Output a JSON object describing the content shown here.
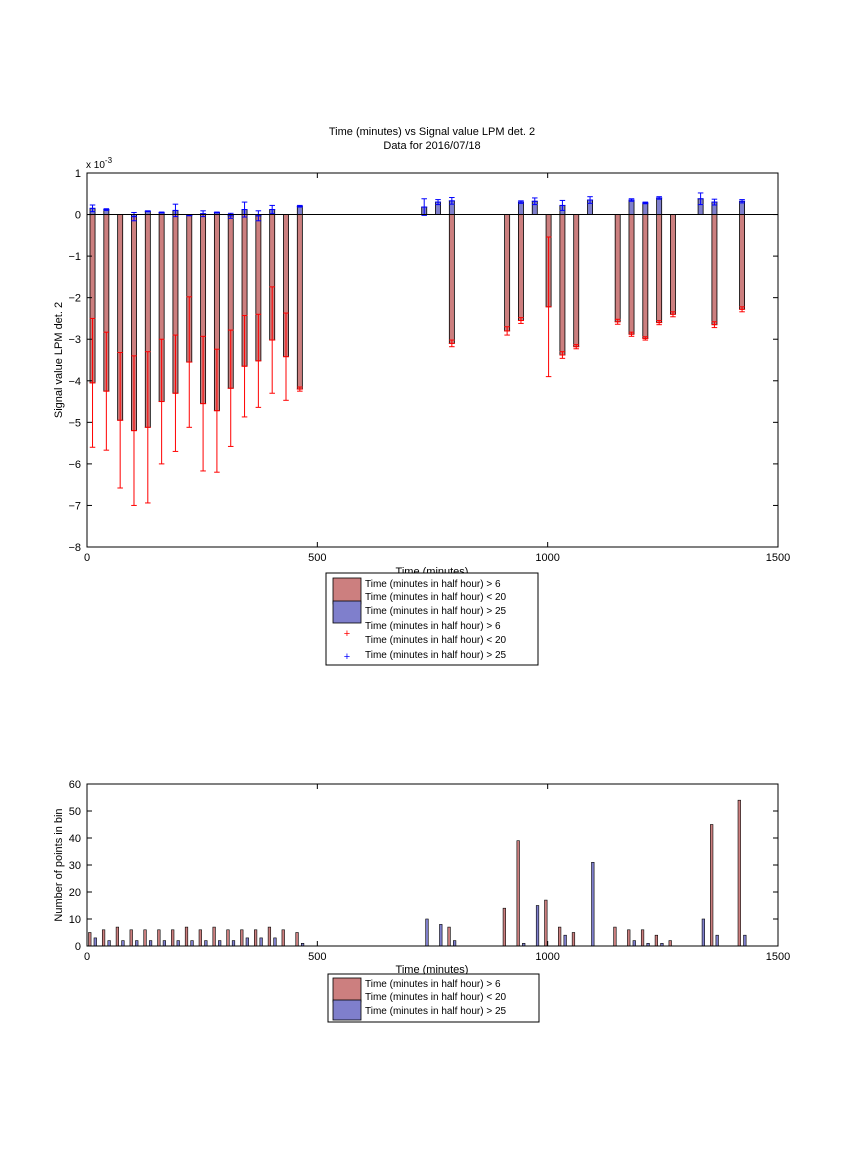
{
  "chart_data": [
    {
      "type": "bar",
      "title": "Time (minutes) vs Signal value LPM det. 2",
      "subtitle": "Data for 2016/07/18",
      "xlabel": "Time (minutes)",
      "ylabel": "Signal value LPM det. 2",
      "y_exponent_label": "x 10",
      "y_exponent_power": "-3",
      "xlim": [
        0,
        1500
      ],
      "ylim": [
        -8,
        1
      ],
      "xticks": [
        0,
        500,
        1000,
        1500
      ],
      "yticks": [
        -8,
        -7,
        -6,
        -5,
        -4,
        -3,
        -2,
        -1,
        0,
        1
      ],
      "grid": false,
      "legend_position": "below",
      "legend": [
        "Time (minutes in half hour) > 6",
        "Time (minutes in half hour) < 20",
        "Time (minutes in half hour) > 25",
        "Time (minutes in half hour) > 6",
        "Time (minutes in half hour) < 20",
        "Time (minutes in half hour) > 25"
      ],
      "series": [
        {
          "name": "Time (minutes in half hour) > 6 / < 20",
          "color": "#cc7f7f",
          "error_color": "#ff0000",
          "points": [
            {
              "x": 12,
              "y": -4.05,
              "err": 1.55
            },
            {
              "x": 42,
              "y": -4.25,
              "err": 1.42
            },
            {
              "x": 72,
              "y": -4.95,
              "err": 1.63
            },
            {
              "x": 102,
              "y": -5.2,
              "err": 1.8
            },
            {
              "x": 132,
              "y": -5.12,
              "err": 1.82
            },
            {
              "x": 162,
              "y": -4.5,
              "err": 1.5
            },
            {
              "x": 192,
              "y": -4.3,
              "err": 1.4
            },
            {
              "x": 222,
              "y": -3.55,
              "err": 1.57
            },
            {
              "x": 252,
              "y": -4.55,
              "err": 1.62
            },
            {
              "x": 282,
              "y": -4.72,
              "err": 1.48
            },
            {
              "x": 312,
              "y": -4.18,
              "err": 1.4
            },
            {
              "x": 342,
              "y": -3.65,
              "err": 1.22
            },
            {
              "x": 372,
              "y": -3.52,
              "err": 1.12
            },
            {
              "x": 402,
              "y": -3.02,
              "err": 1.28
            },
            {
              "x": 432,
              "y": -3.42,
              "err": 1.05
            },
            {
              "x": 462,
              "y": -4.2,
              "err": 0.05
            },
            {
              "x": 792,
              "y": -3.1,
              "err": 0.08
            },
            {
              "x": 912,
              "y": -2.8,
              "err": 0.1
            },
            {
              "x": 942,
              "y": -2.55,
              "err": 0.07
            },
            {
              "x": 1002,
              "y": -2.22,
              "err": 1.68
            },
            {
              "x": 1032,
              "y": -3.38,
              "err": 0.08
            },
            {
              "x": 1062,
              "y": -3.18,
              "err": 0.05
            },
            {
              "x": 1152,
              "y": -2.58,
              "err": 0.06
            },
            {
              "x": 1182,
              "y": -2.88,
              "err": 0.05
            },
            {
              "x": 1212,
              "y": -2.98,
              "err": 0.04
            },
            {
              "x": 1242,
              "y": -2.6,
              "err": 0.05
            },
            {
              "x": 1272,
              "y": -2.4,
              "err": 0.06
            },
            {
              "x": 1362,
              "y": -2.65,
              "err": 0.07
            },
            {
              "x": 1422,
              "y": -2.28,
              "err": 0.06
            }
          ]
        },
        {
          "name": "Time (minutes in half hour) > 25",
          "color": "#7f7fcc",
          "error_color": "#0000ff",
          "points": [
            {
              "x": 12,
              "y": 0.15,
              "err": 0.08
            },
            {
              "x": 42,
              "y": 0.12,
              "err": 0.02
            },
            {
              "x": 102,
              "y": -0.05,
              "err": 0.1
            },
            {
              "x": 132,
              "y": 0.08,
              "err": 0.01
            },
            {
              "x": 162,
              "y": 0.05,
              "err": 0.01
            },
            {
              "x": 192,
              "y": 0.1,
              "err": 0.15
            },
            {
              "x": 222,
              "y": -0.02,
              "err": 0.01
            },
            {
              "x": 252,
              "y": 0.02,
              "err": 0.07
            },
            {
              "x": 282,
              "y": 0.05,
              "err": 0.01
            },
            {
              "x": 312,
              "y": -0.03,
              "err": 0.06
            },
            {
              "x": 342,
              "y": 0.12,
              "err": 0.18
            },
            {
              "x": 372,
              "y": -0.03,
              "err": 0.12
            },
            {
              "x": 402,
              "y": 0.12,
              "err": 0.1
            },
            {
              "x": 462,
              "y": 0.2,
              "err": 0.02
            },
            {
              "x": 732,
              "y": 0.18,
              "err": 0.2
            },
            {
              "x": 762,
              "y": 0.3,
              "err": 0.06
            },
            {
              "x": 792,
              "y": 0.33,
              "err": 0.08
            },
            {
              "x": 942,
              "y": 0.3,
              "err": 0.03
            },
            {
              "x": 972,
              "y": 0.32,
              "err": 0.08
            },
            {
              "x": 1032,
              "y": 0.22,
              "err": 0.12
            },
            {
              "x": 1092,
              "y": 0.35,
              "err": 0.08
            },
            {
              "x": 1182,
              "y": 0.35,
              "err": 0.03
            },
            {
              "x": 1212,
              "y": 0.28,
              "err": 0.02
            },
            {
              "x": 1242,
              "y": 0.4,
              "err": 0.03
            },
            {
              "x": 1332,
              "y": 0.38,
              "err": 0.14
            },
            {
              "x": 1362,
              "y": 0.3,
              "err": 0.07
            },
            {
              "x": 1422,
              "y": 0.32,
              "err": 0.04
            }
          ]
        }
      ]
    },
    {
      "type": "bar",
      "xlabel": "Time (minutes)",
      "ylabel": "Number of points in bin",
      "xlim": [
        0,
        1500
      ],
      "ylim": [
        0,
        60
      ],
      "xticks": [
        0,
        500,
        1000,
        1500
      ],
      "yticks": [
        0,
        10,
        20,
        30,
        40,
        50,
        60
      ],
      "grid": false,
      "legend_position": "below",
      "legend": [
        "Time (minutes in half hour) > 6",
        "Time (minutes in half hour) < 20",
        "Time (minutes in half hour) > 25"
      ],
      "series": [
        {
          "name": "Time (minutes in half hour) > 6 / < 20",
          "color": "#cc7f7f",
          "points": [
            {
              "x": 6,
              "y": 5
            },
            {
              "x": 36,
              "y": 6
            },
            {
              "x": 66,
              "y": 7
            },
            {
              "x": 96,
              "y": 6
            },
            {
              "x": 126,
              "y": 6
            },
            {
              "x": 156,
              "y": 6
            },
            {
              "x": 186,
              "y": 6
            },
            {
              "x": 216,
              "y": 7
            },
            {
              "x": 246,
              "y": 6
            },
            {
              "x": 276,
              "y": 7
            },
            {
              "x": 306,
              "y": 6
            },
            {
              "x": 336,
              "y": 6
            },
            {
              "x": 366,
              "y": 6
            },
            {
              "x": 396,
              "y": 7
            },
            {
              "x": 426,
              "y": 6
            },
            {
              "x": 456,
              "y": 5
            },
            {
              "x": 786,
              "y": 7
            },
            {
              "x": 906,
              "y": 14
            },
            {
              "x": 936,
              "y": 39
            },
            {
              "x": 996,
              "y": 17
            },
            {
              "x": 1026,
              "y": 7
            },
            {
              "x": 1056,
              "y": 5
            },
            {
              "x": 1146,
              "y": 7
            },
            {
              "x": 1176,
              "y": 6
            },
            {
              "x": 1206,
              "y": 6
            },
            {
              "x": 1236,
              "y": 4
            },
            {
              "x": 1266,
              "y": 2
            },
            {
              "x": 1356,
              "y": 45
            },
            {
              "x": 1416,
              "y": 54
            }
          ]
        },
        {
          "name": "Time (minutes in half hour) > 25",
          "color": "#7f7fcc",
          "points": [
            {
              "x": 18,
              "y": 3
            },
            {
              "x": 48,
              "y": 2
            },
            {
              "x": 78,
              "y": 2
            },
            {
              "x": 108,
              "y": 2
            },
            {
              "x": 138,
              "y": 2
            },
            {
              "x": 168,
              "y": 2
            },
            {
              "x": 198,
              "y": 2
            },
            {
              "x": 228,
              "y": 2
            },
            {
              "x": 258,
              "y": 2
            },
            {
              "x": 288,
              "y": 2
            },
            {
              "x": 318,
              "y": 2
            },
            {
              "x": 348,
              "y": 3
            },
            {
              "x": 378,
              "y": 3
            },
            {
              "x": 408,
              "y": 3
            },
            {
              "x": 468,
              "y": 1
            },
            {
              "x": 738,
              "y": 10
            },
            {
              "x": 768,
              "y": 8
            },
            {
              "x": 798,
              "y": 2
            },
            {
              "x": 948,
              "y": 1
            },
            {
              "x": 978,
              "y": 15
            },
            {
              "x": 1038,
              "y": 4
            },
            {
              "x": 1098,
              "y": 31
            },
            {
              "x": 1188,
              "y": 2
            },
            {
              "x": 1218,
              "y": 1
            },
            {
              "x": 1248,
              "y": 1
            },
            {
              "x": 1338,
              "y": 10
            },
            {
              "x": 1368,
              "y": 4
            },
            {
              "x": 1428,
              "y": 4
            }
          ]
        }
      ]
    }
  ]
}
